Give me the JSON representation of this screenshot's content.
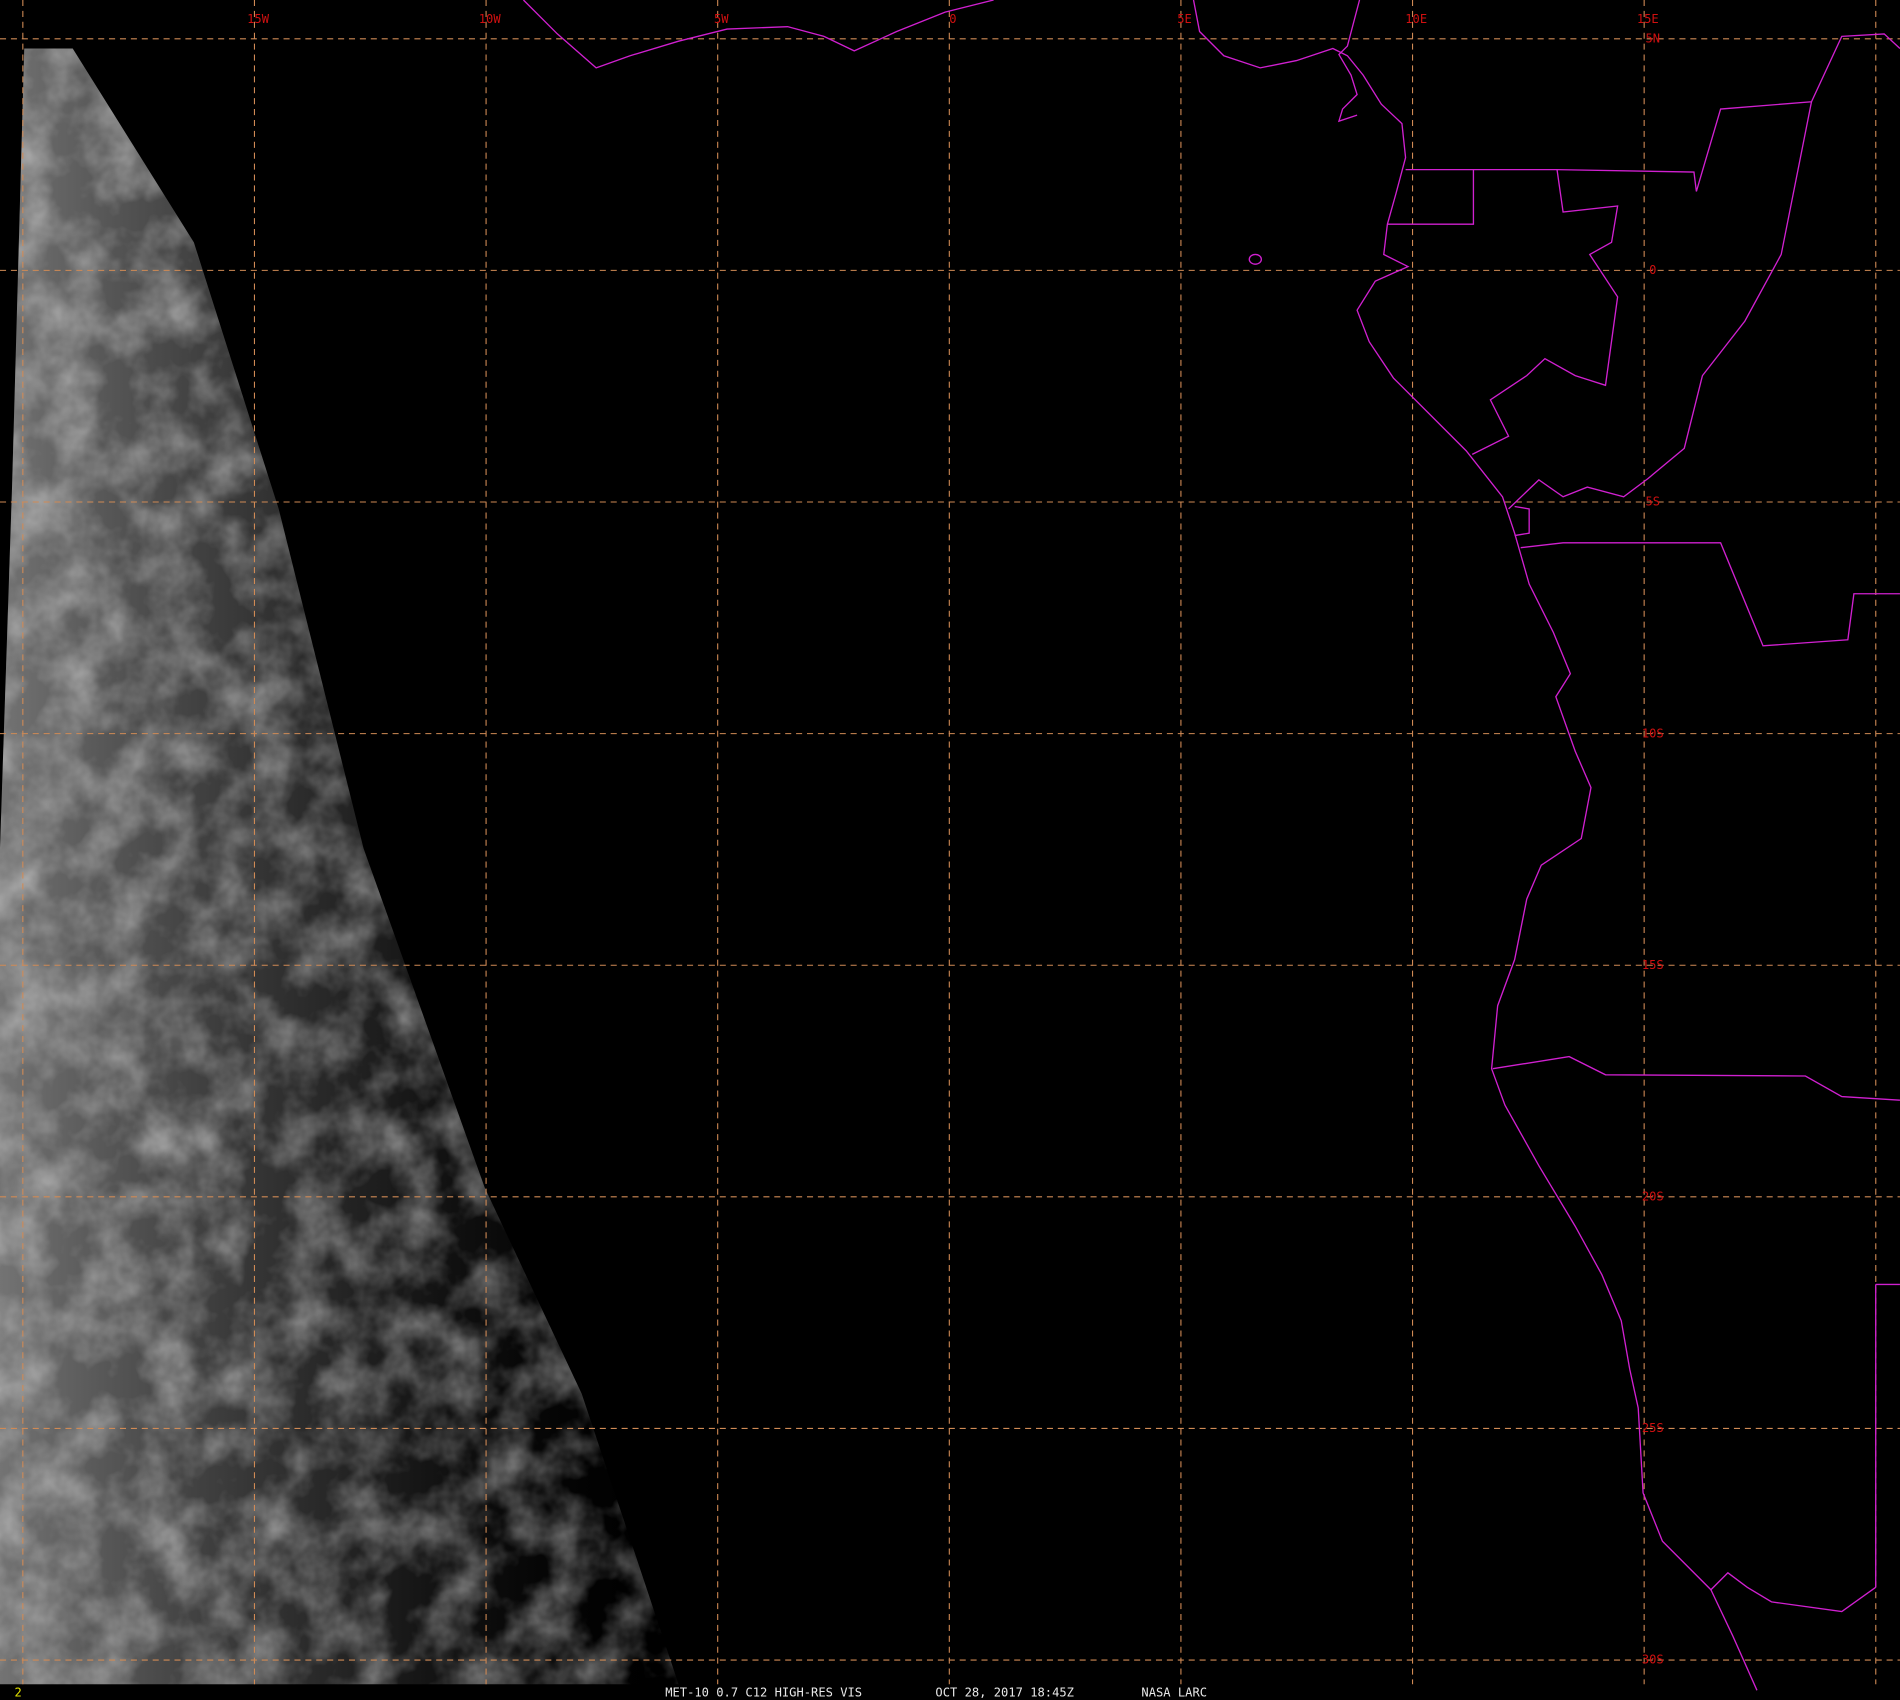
{
  "map": {
    "longitude_labels": [
      "15W",
      "10W",
      "5W",
      "0",
      "5E",
      "10E",
      "15E"
    ],
    "latitude_labels": [
      "5N",
      "0",
      "5S",
      "10S",
      "15S",
      "20S",
      "25S",
      "30S"
    ]
  },
  "footer": {
    "frame": "2",
    "product": "MET-10 0.7 C12 HIGH-RES VIS",
    "time": "OCT 28, 2017 18:45Z",
    "source": "NASA LARC"
  }
}
